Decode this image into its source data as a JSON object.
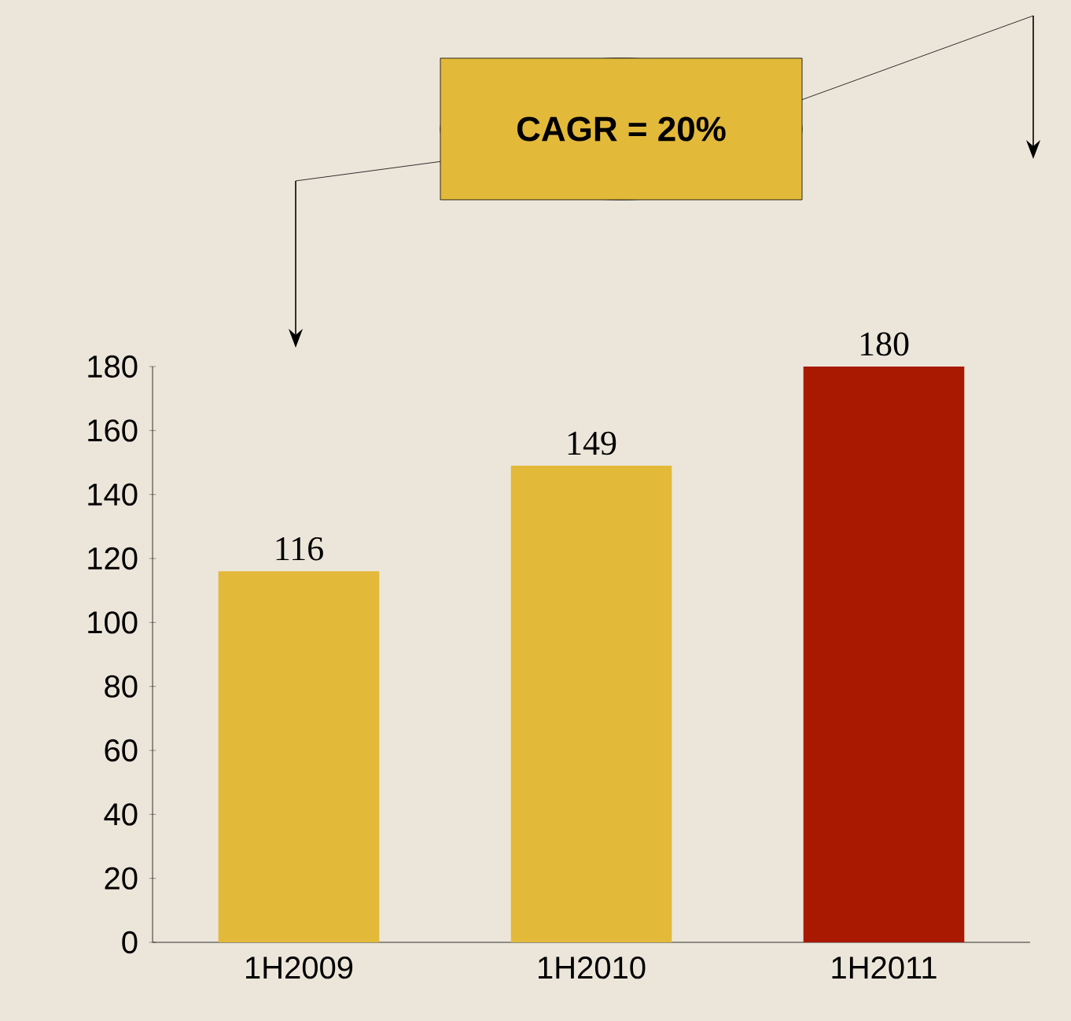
{
  "chart_data": {
    "type": "bar",
    "categories": [
      "1H2009",
      "1H2010",
      "1H2011"
    ],
    "values": [
      116,
      149,
      180
    ],
    "colors": [
      "#e3b93a",
      "#e3b93a",
      "#a91800"
    ],
    "ylim": [
      0,
      180
    ],
    "yticks": [
      0,
      20,
      40,
      60,
      80,
      100,
      120,
      140,
      160,
      180
    ],
    "data_labels": true,
    "annotations": [
      "CAGR = 20%"
    ]
  }
}
